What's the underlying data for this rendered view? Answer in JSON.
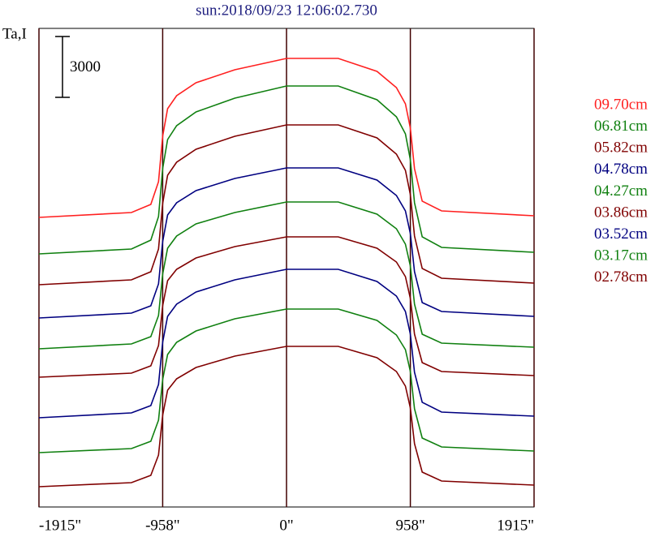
{
  "chart_data": {
    "type": "line",
    "title": "sun:2018/09/23 12:06:02.730",
    "y_label": "Ta,I",
    "scale_bar": 3000,
    "x": [
      -1915,
      -1200,
      -1050,
      -990,
      -958,
      -920,
      -850,
      -700,
      -400,
      0,
      400,
      700,
      850,
      920,
      958,
      990,
      1050,
      1200,
      1915
    ],
    "xlim": [
      -1915,
      1915
    ],
    "xticks": [
      {
        "value": -1915,
        "label": "-1915\""
      },
      {
        "value": -958,
        "label": "-958\""
      },
      {
        "value": 0,
        "label": "0\""
      },
      {
        "value": 958,
        "label": "958\""
      },
      {
        "value": 1915,
        "label": "1915\""
      }
    ],
    "ylim": [
      0,
      23600
    ],
    "grid": true,
    "series": [
      {
        "name": "09.70cm",
        "color": "#ff2020",
        "values": [
          14280,
          14520,
          14920,
          16040,
          18280,
          19640,
          20280,
          20920,
          21560,
          22120,
          22120,
          21480,
          20680,
          19880,
          18680,
          16680,
          15080,
          14600,
          14360
        ]
      },
      {
        "name": "06.81cm",
        "color": "#108010",
        "values": [
          12480,
          12720,
          13160,
          14320,
          16680,
          18120,
          18800,
          19480,
          20160,
          20760,
          20760,
          20080,
          19240,
          18400,
          17120,
          15000,
          13320,
          12800,
          12560
        ]
      },
      {
        "name": "05.82cm",
        "color": "#800000",
        "values": [
          10960,
          11200,
          11600,
          12720,
          14960,
          16360,
          17000,
          17640,
          18280,
          18840,
          18840,
          18200,
          17400,
          16600,
          15400,
          13360,
          11760,
          11280,
          11040
        ]
      },
      {
        "name": "04.78cm",
        "color": "#000080",
        "values": [
          9320,
          9560,
          9920,
          11000,
          13080,
          14400,
          15000,
          15600,
          16200,
          16720,
          16720,
          16120,
          15360,
          14600,
          13480,
          11600,
          10080,
          9640,
          9400
        ]
      },
      {
        "name": "04.27cm",
        "color": "#108010",
        "values": [
          7800,
          8040,
          8400,
          9440,
          11480,
          12760,
          13360,
          13960,
          14520,
          15040,
          15040,
          14440,
          13720,
          12960,
          11880,
          10000,
          8520,
          8080,
          7880
        ]
      },
      {
        "name": "03.86cm",
        "color": "#800000",
        "values": [
          6400,
          6600,
          6960,
          7960,
          9920,
          11160,
          11720,
          12280,
          12840,
          13320,
          13320,
          12760,
          12080,
          11360,
          10280,
          8520,
          7120,
          6680,
          6480
        ]
      },
      {
        "name": "03.52cm",
        "color": "#000080",
        "values": [
          4400,
          4640,
          5000,
          6040,
          8120,
          9400,
          10000,
          10600,
          11200,
          11720,
          11720,
          11120,
          10400,
          9640,
          8520,
          6640,
          5160,
          4680,
          4480
        ]
      },
      {
        "name": "03.17cm",
        "color": "#108010",
        "values": [
          2680,
          2880,
          3240,
          4280,
          6280,
          7520,
          8120,
          8680,
          9280,
          9760,
          9760,
          9200,
          8480,
          7760,
          6680,
          4840,
          3400,
          2960,
          2760
        ]
      },
      {
        "name": "02.78cm",
        "color": "#800000",
        "values": [
          1000,
          1200,
          1560,
          2560,
          4520,
          5760,
          6320,
          6880,
          7440,
          7920,
          7920,
          7360,
          6680,
          5960,
          4880,
          3120,
          1720,
          1280,
          1080
        ]
      }
    ]
  }
}
